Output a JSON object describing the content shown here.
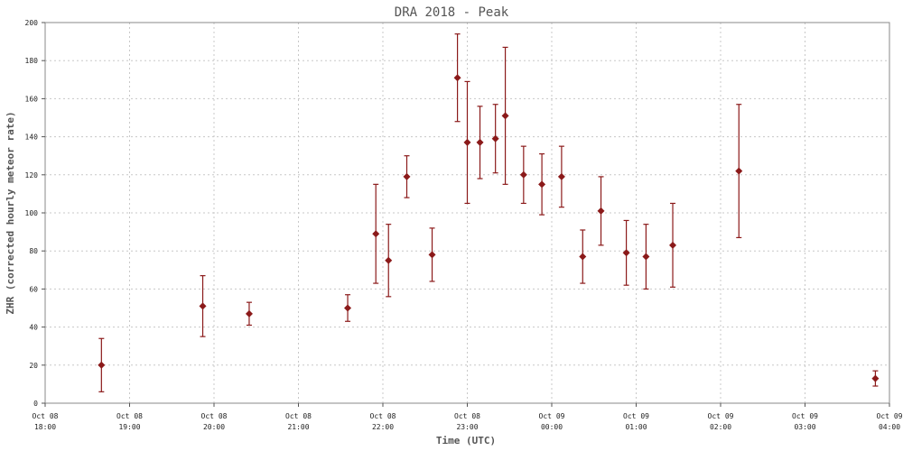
{
  "chart_data": {
    "type": "scatter",
    "title": "DRA 2018 - Peak",
    "xlabel": "Time (UTC)",
    "ylabel": "ZHR (corrected hourly meteor rate)",
    "xlim": [
      "2018-10-08T18:00",
      "2018-10-09T04:00"
    ],
    "ylim": [
      0,
      200
    ],
    "y_ticks": [
      0,
      20,
      40,
      60,
      80,
      100,
      120,
      140,
      160,
      180,
      200
    ],
    "x_ticks": [
      {
        "t": "2018-10-08T18:00",
        "date": "Oct 08",
        "time": "18:00"
      },
      {
        "t": "2018-10-08T19:00",
        "date": "Oct 08",
        "time": "19:00"
      },
      {
        "t": "2018-10-08T20:00",
        "date": "Oct 08",
        "time": "20:00"
      },
      {
        "t": "2018-10-08T21:00",
        "date": "Oct 08",
        "time": "21:00"
      },
      {
        "t": "2018-10-08T22:00",
        "date": "Oct 08",
        "time": "22:00"
      },
      {
        "t": "2018-10-08T23:00",
        "date": "Oct 08",
        "time": "23:00"
      },
      {
        "t": "2018-10-09T00:00",
        "date": "Oct 09",
        "time": "00:00"
      },
      {
        "t": "2018-10-09T01:00",
        "date": "Oct 09",
        "time": "01:00"
      },
      {
        "t": "2018-10-09T02:00",
        "date": "Oct 09",
        "time": "02:00"
      },
      {
        "t": "2018-10-09T03:00",
        "date": "Oct 09",
        "time": "03:00"
      },
      {
        "t": "2018-10-09T04:00",
        "date": "Oct 09",
        "time": "04:00"
      }
    ],
    "grid": true,
    "colors": {
      "series": "#8b1a1a",
      "background": "#ffffff",
      "grid": "#c8c8c8"
    },
    "series": [
      {
        "points": [
          {
            "x": "2018-10-08T18:40",
            "y": 20,
            "ymin": 6,
            "ymax": 34
          },
          {
            "x": "2018-10-08T19:52",
            "y": 51,
            "ymin": 35,
            "ymax": 67
          },
          {
            "x": "2018-10-08T20:25",
            "y": 47,
            "ymin": 41,
            "ymax": 53
          },
          {
            "x": "2018-10-08T21:35",
            "y": 50,
            "ymin": 43,
            "ymax": 57
          },
          {
            "x": "2018-10-08T21:55",
            "y": 89,
            "ymin": 63,
            "ymax": 115
          },
          {
            "x": "2018-10-08T22:04",
            "y": 75,
            "ymin": 56,
            "ymax": 94
          },
          {
            "x": "2018-10-08T22:17",
            "y": 119,
            "ymin": 108,
            "ymax": 130
          },
          {
            "x": "2018-10-08T22:35",
            "y": 78,
            "ymin": 64,
            "ymax": 92
          },
          {
            "x": "2018-10-08T22:53",
            "y": 171,
            "ymin": 148,
            "ymax": 194
          },
          {
            "x": "2018-10-08T23:00",
            "y": 137,
            "ymin": 105,
            "ymax": 169
          },
          {
            "x": "2018-10-08T23:09",
            "y": 137,
            "ymin": 118,
            "ymax": 156
          },
          {
            "x": "2018-10-08T23:20",
            "y": 139,
            "ymin": 121,
            "ymax": 157
          },
          {
            "x": "2018-10-08T23:27",
            "y": 151,
            "ymin": 115,
            "ymax": 187
          },
          {
            "x": "2018-10-08T23:40",
            "y": 120,
            "ymin": 105,
            "ymax": 135
          },
          {
            "x": "2018-10-08T23:53",
            "y": 115,
            "ymin": 99,
            "ymax": 131
          },
          {
            "x": "2018-10-09T00:07",
            "y": 119,
            "ymin": 103,
            "ymax": 135
          },
          {
            "x": "2018-10-09T00:22",
            "y": 77,
            "ymin": 63,
            "ymax": 91
          },
          {
            "x": "2018-10-09T00:35",
            "y": 101,
            "ymin": 83,
            "ymax": 119
          },
          {
            "x": "2018-10-09T00:53",
            "y": 79,
            "ymin": 62,
            "ymax": 96
          },
          {
            "x": "2018-10-09T01:07",
            "y": 77,
            "ymin": 60,
            "ymax": 94
          },
          {
            "x": "2018-10-09T01:26",
            "y": 83,
            "ymin": 61,
            "ymax": 105
          },
          {
            "x": "2018-10-09T02:13",
            "y": 122,
            "ymin": 87,
            "ymax": 157
          },
          {
            "x": "2018-10-09T03:50",
            "y": 13,
            "ymin": 9,
            "ymax": 17
          }
        ]
      }
    ]
  }
}
